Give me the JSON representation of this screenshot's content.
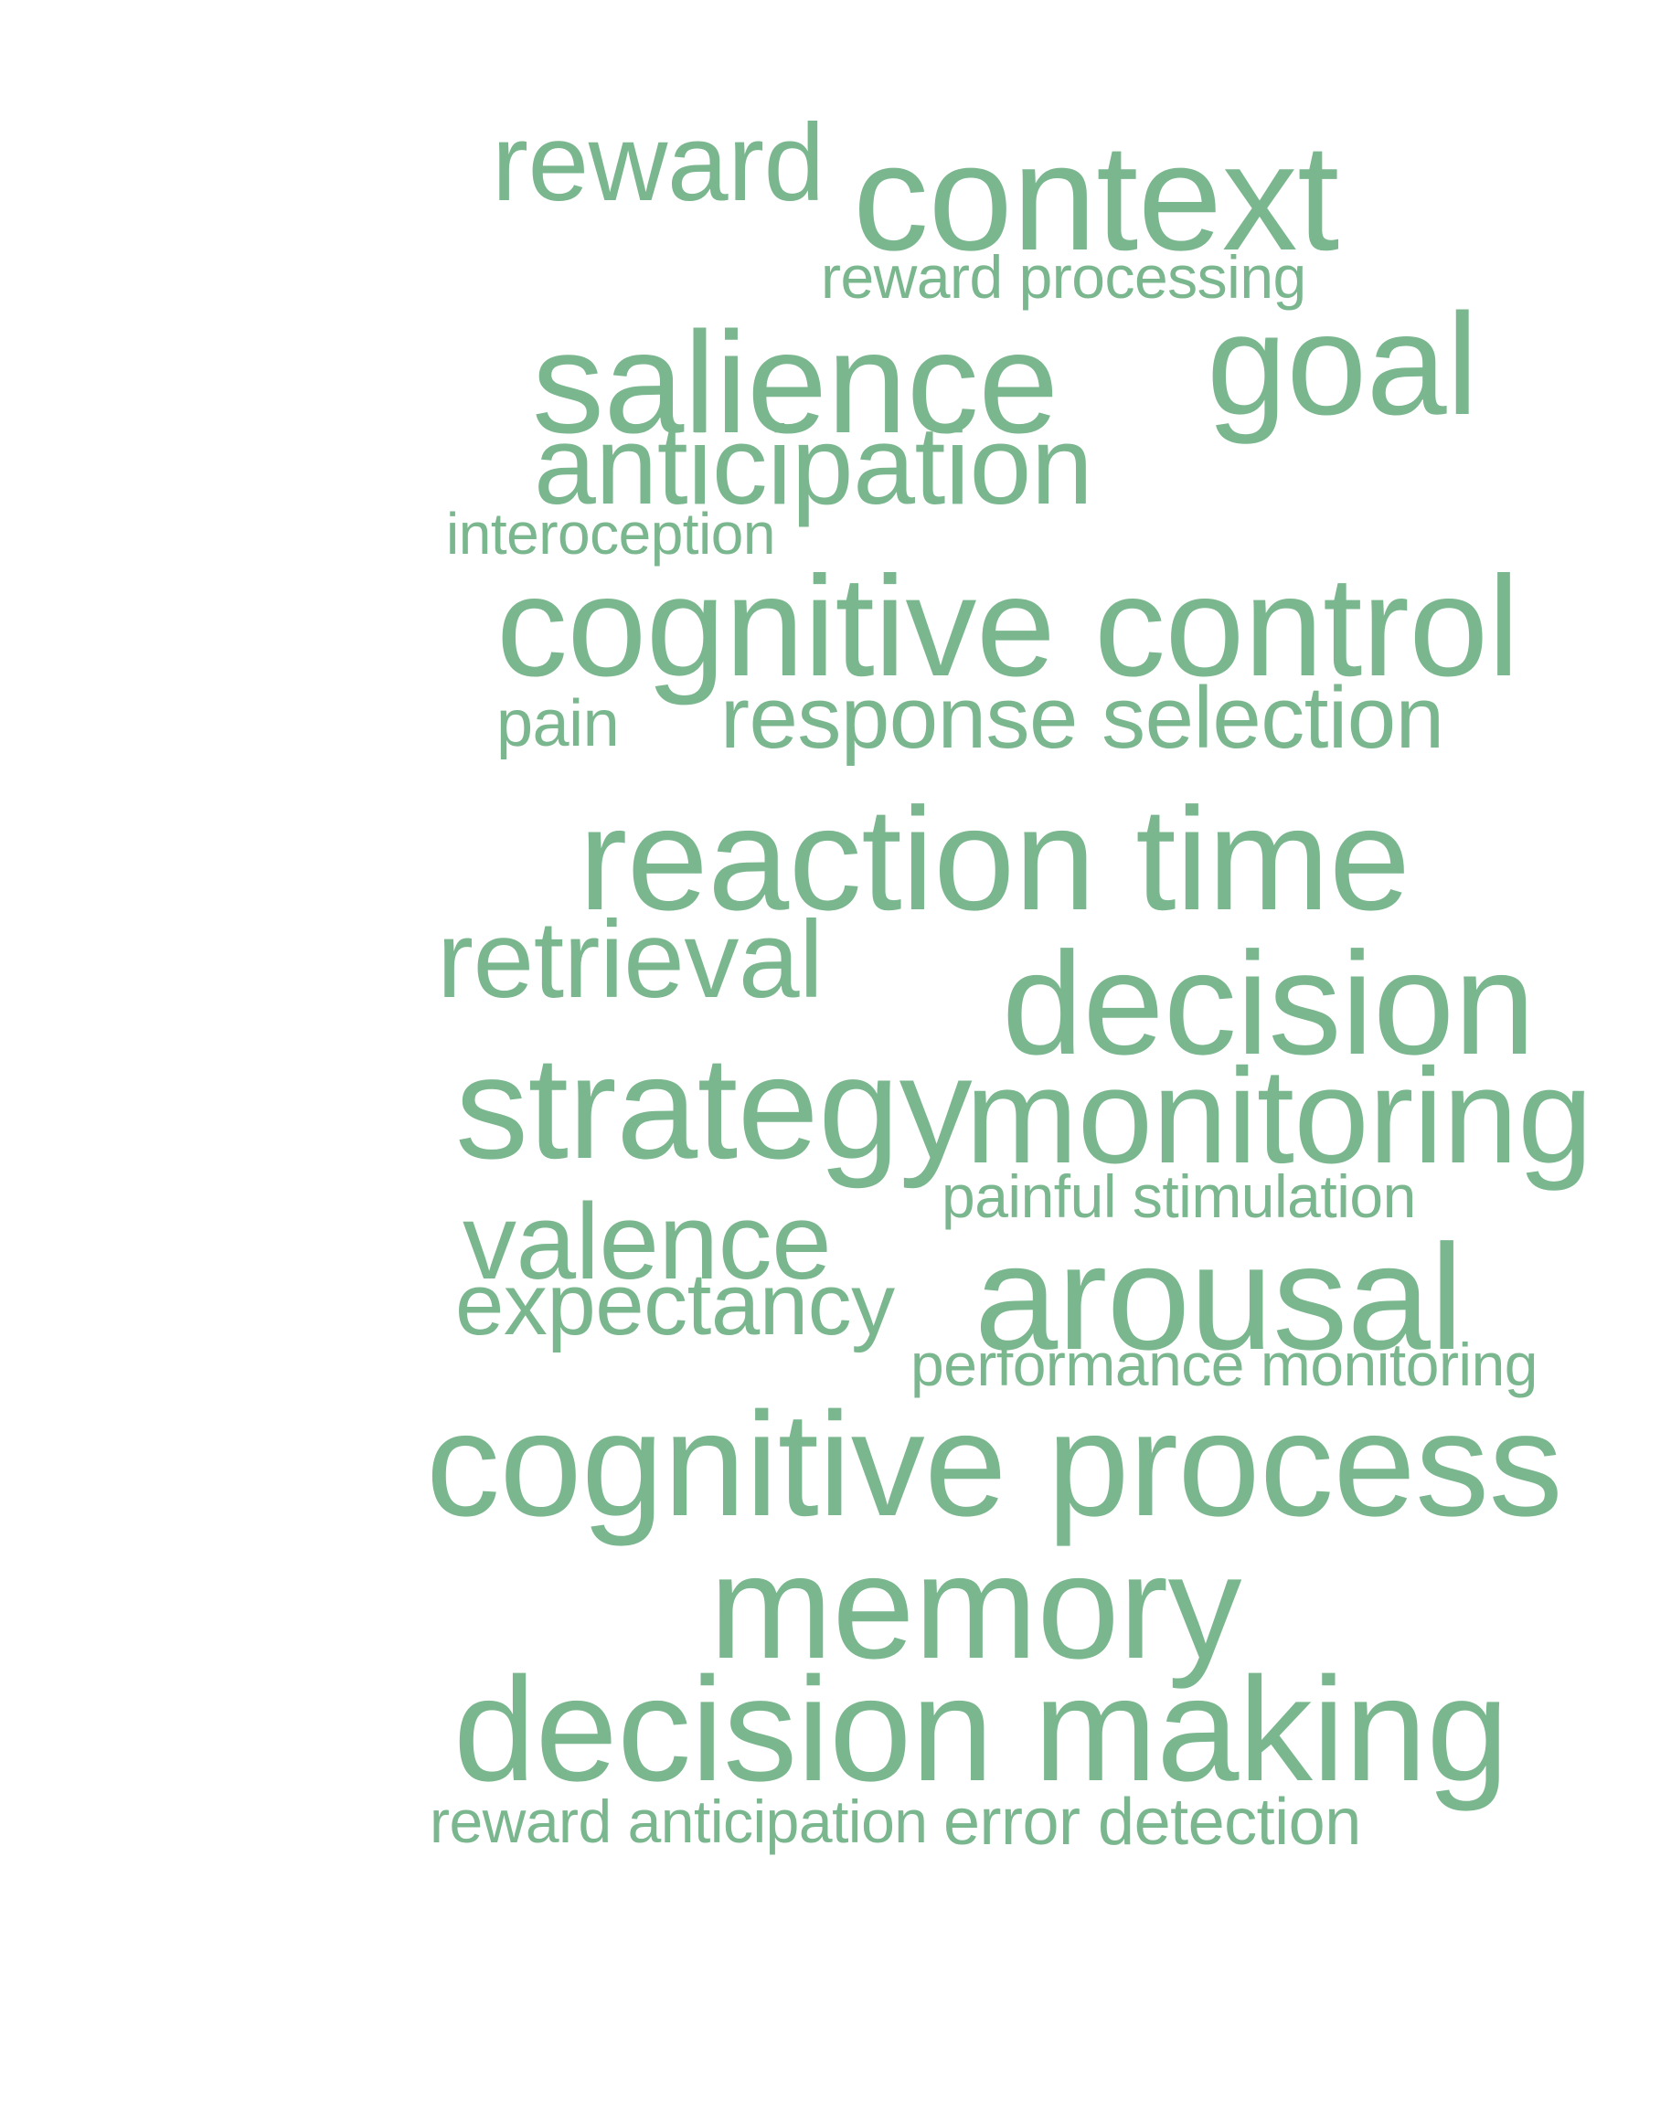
{
  "palette": {
    "word_color": "#7ab68e",
    "background": "#ffffff"
  },
  "words": {
    "reward": "reward",
    "context": "context",
    "reward_processing": "reward processing",
    "salience": "salience",
    "goal": "goal",
    "anticipation": "anticipation",
    "interoception": "interoception",
    "cognitive_control": "cognitive control",
    "pain": "pain",
    "response_selection": "response selection",
    "reaction_time": "reaction time",
    "retrieval": "retrieval",
    "decision": "decision",
    "strategy": "strategy",
    "monitoring": "monitoring",
    "painful_stimulation": "painful stimulation",
    "valence": "valence",
    "arousal": "arousal",
    "expectancy": "expectancy",
    "performance_monitoring": "performance monitoring",
    "cognitive_process": "cognitive process",
    "memory": "memory",
    "decision_making": "decision making",
    "reward_anticipation": "reward anticipation",
    "error_detection": "error detection"
  }
}
